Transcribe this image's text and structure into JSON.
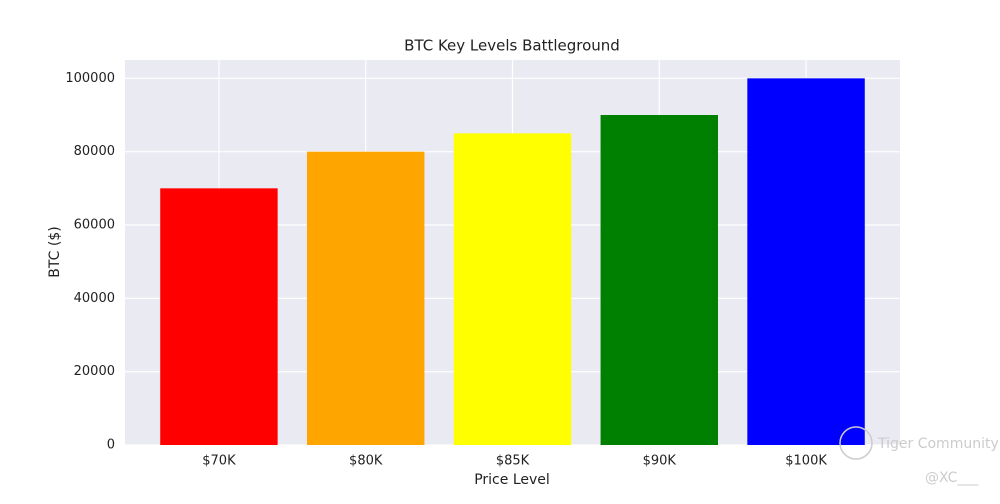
{
  "chart_data": {
    "type": "bar",
    "title": "BTC Key Levels Battleground",
    "x_label": "Price Level",
    "y_label": "BTC ($)",
    "categories": [
      "$70K",
      "$80K",
      "$85K",
      "$90K",
      "$100K"
    ],
    "values": [
      70000,
      80000,
      85000,
      90000,
      100000
    ],
    "colors": [
      "#ff0000",
      "#ffa500",
      "#ffff00",
      "#008000",
      "#0000ff"
    ],
    "ylim": [
      0,
      105000
    ],
    "yticks": [
      0,
      20000,
      40000,
      60000,
      80000,
      100000
    ],
    "grid": true,
    "watermark": "Tiger Community",
    "watermark_handle": "@XC___"
  }
}
